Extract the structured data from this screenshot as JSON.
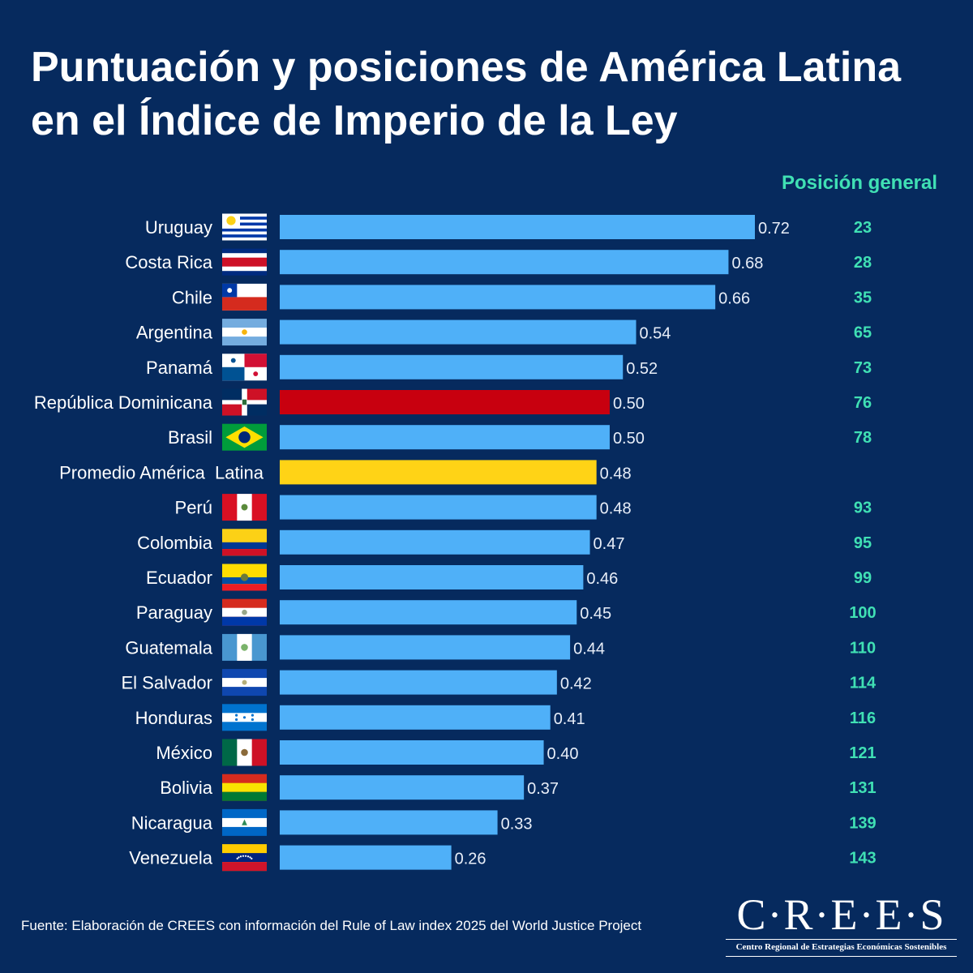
{
  "chart_data": {
    "type": "bar",
    "orientation": "horizontal",
    "title": "Puntuación y posiciones de América Latina en el Índice de Imperio de la Ley",
    "rank_header": "Posición general",
    "categories": [
      "Uruguay",
      "Costa Rica",
      "Chile",
      "Argentina",
      "Panamá",
      "República Dominicana",
      "Brasil",
      "Promedio América  Latina",
      "Perú",
      "Colombia",
      "Ecuador",
      "Paraguay",
      "Guatemala",
      "El Salvador",
      "Honduras",
      "México",
      "Bolivia",
      "Nicaragua",
      "Venezuela"
    ],
    "values": [
      0.72,
      0.68,
      0.66,
      0.54,
      0.52,
      0.5,
      0.5,
      0.48,
      0.48,
      0.47,
      0.46,
      0.45,
      0.44,
      0.42,
      0.41,
      0.4,
      0.37,
      0.33,
      0.26
    ],
    "value_labels": [
      "0.72",
      "0.68",
      "0.66",
      "0.54",
      "0.52",
      "0.50",
      "0.50",
      "0.48",
      "0.48",
      "0.47",
      "0.46",
      "0.45",
      "0.44",
      "0.42",
      "0.41",
      "0.40",
      "0.37",
      "0.33",
      "0.26"
    ],
    "ranks": [
      "23",
      "28",
      "35",
      "65",
      "73",
      "76",
      "78",
      "",
      "93",
      "95",
      "99",
      "100",
      "110",
      "114",
      "116",
      "121",
      "131",
      "139",
      "143"
    ],
    "bar_colors": [
      "#4fb0f8",
      "#4fb0f8",
      "#4fb0f8",
      "#4fb0f8",
      "#4fb0f8",
      "#c8000f",
      "#4fb0f8",
      "#ffd316",
      "#4fb0f8",
      "#4fb0f8",
      "#4fb0f8",
      "#4fb0f8",
      "#4fb0f8",
      "#4fb0f8",
      "#4fb0f8",
      "#4fb0f8",
      "#4fb0f8",
      "#4fb0f8",
      "#4fb0f8"
    ],
    "flags": [
      "uruguay-flag",
      "costa-rica-flag",
      "chile-flag",
      "argentina-flag",
      "panama-flag",
      "dominican-republic-flag",
      "brazil-flag",
      "",
      "peru-flag",
      "colombia-flag",
      "ecuador-flag",
      "paraguay-flag",
      "guatemala-flag",
      "el-salvador-flag",
      "honduras-flag",
      "mexico-flag",
      "bolivia-flag",
      "nicaragua-flag",
      "venezuela-flag"
    ],
    "xlim": [
      0,
      0.72
    ],
    "grid": false,
    "legend": "none"
  },
  "colors": {
    "background": "#062a5e",
    "bar_default": "#4fb0f8",
    "highlight_red": "#c8000f",
    "average_yellow": "#ffd316",
    "rank_text": "#40e0b4"
  },
  "footer": {
    "source": "Fuente: Elaboración de CREES con información del Rule of Law index 2025 del World Justice Project"
  },
  "logo": {
    "name": "C·R·E·E·S",
    "subtitle": "Centro Regional de Estrategias Económicas Sostenibles"
  }
}
